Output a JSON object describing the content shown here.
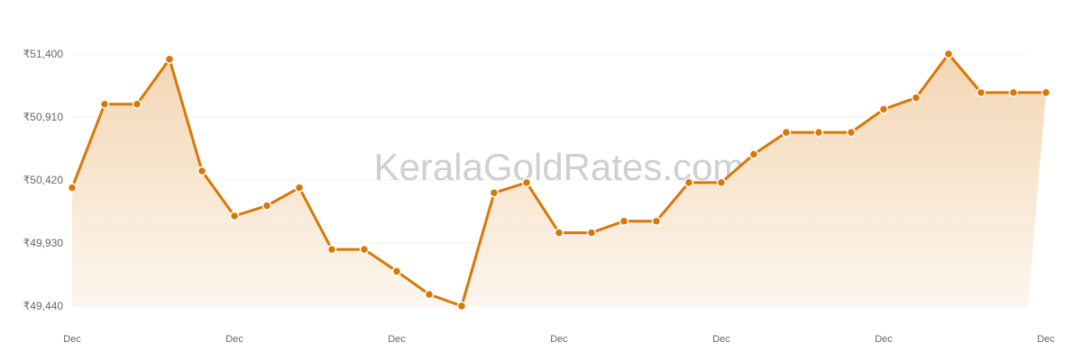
{
  "watermark": "KeralaGoldRates.com",
  "colors": {
    "line": "#d97706",
    "fill_top": "#f3d6b3",
    "fill_bottom": "#fdf6ee",
    "grid": "#f2f2f2"
  },
  "chart_data": {
    "type": "area",
    "title": "",
    "xlabel": "",
    "ylabel": "",
    "ylim": [
      49440,
      51400
    ],
    "y_ticks": [
      "₹49,440",
      "₹49,930",
      "₹50,420",
      "₹50,910",
      "₹51,400"
    ],
    "y_tick_values": [
      49440,
      49930,
      50420,
      50910,
      51400
    ],
    "x_tick_labels": [
      "Dec",
      "Dec",
      "Dec",
      "Dec",
      "Dec",
      "Dec",
      "Dec"
    ],
    "x_tick_every": 5,
    "grid": true,
    "values": [
      50360,
      51010,
      51010,
      51360,
      50490,
      50140,
      50220,
      50360,
      49880,
      49880,
      49710,
      49530,
      49440,
      50320,
      50400,
      50010,
      50010,
      50100,
      50100,
      50400,
      50400,
      50620,
      50790,
      50790,
      50790,
      50970,
      51060,
      51400,
      51100,
      51100,
      51100
    ]
  }
}
